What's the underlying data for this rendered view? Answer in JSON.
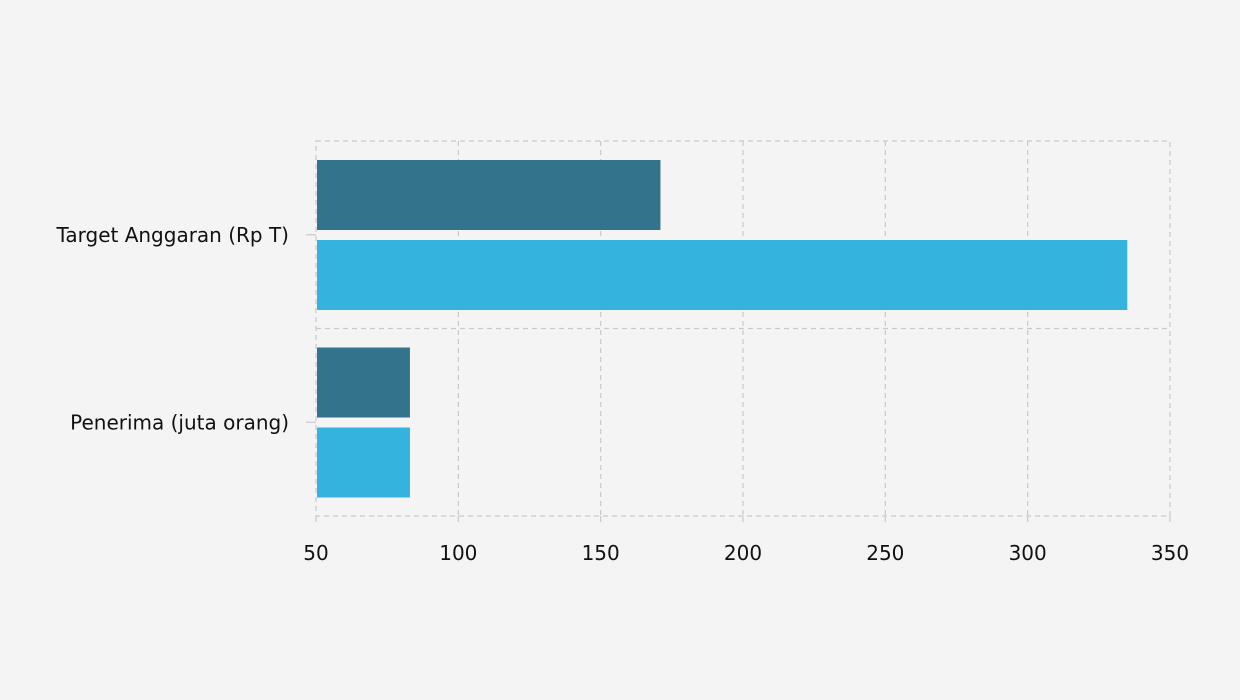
{
  "chart_data": {
    "type": "bar",
    "orientation": "horizontal",
    "categories": [
      "Target Anggaran (Rp T)",
      "Penerima (juta orang)"
    ],
    "series": [
      {
        "values": [
          171,
          83
        ],
        "color": "#2f7089"
      },
      {
        "values": [
          335,
          83
        ],
        "color": "#30b1de"
      }
    ],
    "xlim": [
      50,
      350
    ],
    "xticks": [
      50,
      100,
      150,
      200,
      250,
      300,
      350
    ],
    "title": "",
    "xlabel": "",
    "ylabel": "",
    "grid": true,
    "grid_style": "dashed",
    "legend": "none"
  }
}
